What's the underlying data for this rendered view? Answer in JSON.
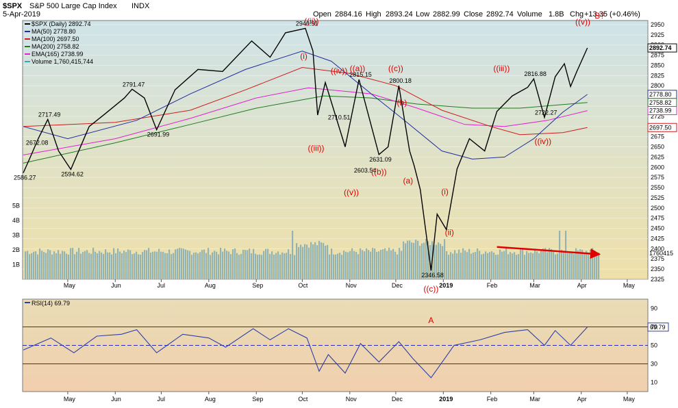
{
  "header": {
    "title": "$SPX",
    "subtitle": "S&P 500 Large Cap Index",
    "exchange": "INDX",
    "date": "5-Apr-2019",
    "open_label": "Open",
    "open": "2884.16",
    "high_label": "High",
    "high": "2893.24",
    "low_label": "Low",
    "low": "2882.99",
    "close_label": "Close",
    "close": "2892.74",
    "volume_label": "Volume",
    "volume": "1.8B",
    "chg_label": "Chg",
    "chg": "+13.35 (+0.46%)"
  },
  "legend": [
    {
      "label": "$SPX (Daily) 2892.74",
      "color": "#000000"
    },
    {
      "label": "MA(50) 2778.80",
      "color": "#1f2d9e"
    },
    {
      "label": "MA(100) 2697.50",
      "color": "#d11a1a"
    },
    {
      "label": "MA(200) 2758.82",
      "color": "#1e7a1e"
    },
    {
      "label": "EMA(165) 2738.99",
      "color": "#e020d0"
    },
    {
      "label": "Volume 1,760,415,744",
      "color": "#3aa3b5"
    }
  ],
  "colors": {
    "price_bg_top": "#cfe3e8",
    "price_bg_bottom": "#efe0a8",
    "rsi_bg_top": "#e9dcb6",
    "rsi_bg_bottom": "#f1cfae",
    "volume_bar": "#93b3b3",
    "annotation": "#e00000"
  },
  "chart_data": [
    {
      "type": "line",
      "name": "price",
      "x_axis": [
        "May",
        "Jun",
        "Jul",
        "Aug",
        "Sep",
        "Oct",
        "Nov",
        "Dec",
        "2019",
        "Feb",
        "Mar",
        "Apr",
        "May"
      ],
      "ylim": [
        2325,
        2960
      ],
      "y_ticks": [
        2950,
        2925,
        2900,
        2875,
        2850,
        2825,
        2800,
        2775,
        2750,
        2725,
        2700,
        2675,
        2650,
        2625,
        2600,
        2575,
        2550,
        2525,
        2500,
        2475,
        2450,
        2425,
        2400,
        2375,
        2350,
        2325
      ],
      "volume_ticks": [
        "5B",
        "4B",
        "3B",
        "2B",
        "1B"
      ],
      "volume_ticks_values": [
        5,
        4,
        3,
        2,
        1
      ],
      "price_path": [
        [
          "2018-04-02",
          2586.27
        ],
        [
          "2018-04-06",
          2620
        ],
        [
          "2018-04-12",
          2672.08
        ],
        [
          "2018-04-18",
          2717.49
        ],
        [
          "2018-04-25",
          2640
        ],
        [
          "2018-05-03",
          2594.62
        ],
        [
          "2018-05-15",
          2700
        ],
        [
          "2018-05-25",
          2730
        ],
        [
          "2018-06-07",
          2770
        ],
        [
          "2018-06-12",
          2791.47
        ],
        [
          "2018-06-20",
          2770
        ],
        [
          "2018-06-28",
          2691.99
        ],
        [
          "2018-07-10",
          2790
        ],
        [
          "2018-07-25",
          2840
        ],
        [
          "2018-08-10",
          2835
        ],
        [
          "2018-08-29",
          2910
        ],
        [
          "2018-09-10",
          2870
        ],
        [
          "2018-09-20",
          2930
        ],
        [
          "2018-10-03",
          2940.91
        ],
        [
          "2018-10-08",
          2885
        ],
        [
          "2018-10-11",
          2728
        ],
        [
          "2018-10-16",
          2808
        ],
        [
          "2018-10-24",
          2710.51
        ],
        [
          "2018-10-29",
          2650
        ],
        [
          "2018-11-07",
          2815.15
        ],
        [
          "2018-11-20",
          2631.09
        ],
        [
          "2018-11-26",
          2650
        ],
        [
          "2018-12-03",
          2800.18
        ],
        [
          "2018-12-10",
          2640
        ],
        [
          "2018-12-13",
          2603.54
        ],
        [
          "2018-12-17",
          2545
        ],
        [
          "2018-12-24",
          2346.58
        ],
        [
          "2018-12-28",
          2485
        ],
        [
          "2019-01-03",
          2447
        ],
        [
          "2019-01-10",
          2596
        ],
        [
          "2019-01-18",
          2670
        ],
        [
          "2019-01-28",
          2640
        ],
        [
          "2019-02-05",
          2737
        ],
        [
          "2019-02-15",
          2775
        ],
        [
          "2019-02-25",
          2796
        ],
        [
          "2019-03-01",
          2816.88
        ],
        [
          "2019-03-08",
          2722.27
        ],
        [
          "2019-03-15",
          2822
        ],
        [
          "2019-03-21",
          2854
        ],
        [
          "2019-03-25",
          2798
        ],
        [
          "2019-03-29",
          2834
        ],
        [
          "2019-04-05",
          2892.74
        ]
      ],
      "ma50": [
        [
          "2018-04-02",
          2700
        ],
        [
          "2018-05-01",
          2670
        ],
        [
          "2018-06-15",
          2715
        ],
        [
          "2018-07-20",
          2780
        ],
        [
          "2018-08-25",
          2840
        ],
        [
          "2018-10-01",
          2885
        ],
        [
          "2018-10-20",
          2860
        ],
        [
          "2018-11-15",
          2780
        ],
        [
          "2018-12-05",
          2720
        ],
        [
          "2018-12-31",
          2640
        ],
        [
          "2019-01-20",
          2620
        ],
        [
          "2019-02-10",
          2625
        ],
        [
          "2019-03-01",
          2670
        ],
        [
          "2019-03-20",
          2735
        ],
        [
          "2019-04-05",
          2778.8
        ]
      ],
      "ma100": [
        [
          "2018-04-02",
          2700
        ],
        [
          "2018-06-01",
          2710
        ],
        [
          "2018-07-20",
          2740
        ],
        [
          "2018-08-25",
          2790
        ],
        [
          "2018-10-01",
          2845
        ],
        [
          "2018-11-01",
          2830
        ],
        [
          "2018-12-01",
          2800
        ],
        [
          "2018-12-31",
          2740
        ],
        [
          "2019-02-01",
          2700
        ],
        [
          "2019-02-20",
          2680
        ],
        [
          "2019-03-20",
          2685
        ],
        [
          "2019-04-05",
          2697.5
        ]
      ],
      "ma200": [
        [
          "2018-04-02",
          2610
        ],
        [
          "2018-06-01",
          2660
        ],
        [
          "2018-07-20",
          2705
        ],
        [
          "2018-09-01",
          2745
        ],
        [
          "2018-10-15",
          2775
        ],
        [
          "2018-11-15",
          2770
        ],
        [
          "2018-12-15",
          2755
        ],
        [
          "2019-01-20",
          2745
        ],
        [
          "2019-02-20",
          2745
        ],
        [
          "2019-04-05",
          2758.82
        ]
      ],
      "ema165": [
        [
          "2018-04-02",
          2630
        ],
        [
          "2018-06-01",
          2670
        ],
        [
          "2018-07-20",
          2720
        ],
        [
          "2018-09-01",
          2770
        ],
        [
          "2018-10-05",
          2795
        ],
        [
          "2018-11-15",
          2780
        ],
        [
          "2018-12-15",
          2745
        ],
        [
          "2019-01-15",
          2705
        ],
        [
          "2019-02-10",
          2700
        ],
        [
          "2019-03-10",
          2715
        ],
        [
          "2019-04-05",
          2738.99
        ]
      ],
      "price_labels": [
        {
          "x": "2018-04-02",
          "y": 2586.27,
          "text": "2586.27"
        },
        {
          "x": "2018-04-10",
          "y": 2672.08,
          "text": "2672.08"
        },
        {
          "x": "2018-04-18",
          "y": 2717.49,
          "text": "2717.49"
        },
        {
          "x": "2018-05-03",
          "y": 2594.62,
          "text": "2594.62"
        },
        {
          "x": "2018-06-12",
          "y": 2791.47,
          "text": "2791.47"
        },
        {
          "x": "2018-06-28",
          "y": 2691.99,
          "text": "2691.99"
        },
        {
          "x": "2018-10-03",
          "y": 2940.91,
          "text": "2940.91"
        },
        {
          "x": "2018-10-24",
          "y": 2710.51,
          "text": "2710.51"
        },
        {
          "x": "2018-11-07",
          "y": 2815.15,
          "text": "2815.15"
        },
        {
          "x": "2018-11-20",
          "y": 2631.09,
          "text": "2631.09"
        },
        {
          "x": "2018-11-10",
          "y": 2603.54,
          "text": "2603.54"
        },
        {
          "x": "2018-12-03",
          "y": 2800.18,
          "text": "2800.18"
        },
        {
          "x": "2018-12-24",
          "y": 2346.58,
          "text": "2346.58"
        },
        {
          "x": "2019-03-01",
          "y": 2816.88,
          "text": "2816.88"
        },
        {
          "x": "2019-03-08",
          "y": 2722.27,
          "text": "2722.27"
        }
      ],
      "wave_labels": [
        {
          "text": "((ii))",
          "x": "2018-10-07",
          "y": 2952
        },
        {
          "text": "(i)",
          "x": "2018-10-02",
          "y": 2866
        },
        {
          "text": "((iii))",
          "x": "2018-10-10",
          "y": 2640
        },
        {
          "text": "((iv))",
          "x": "2018-10-25",
          "y": 2830
        },
        {
          "text": "((a))",
          "x": "2018-11-06",
          "y": 2836
        },
        {
          "text": "((c))",
          "x": "2018-12-01",
          "y": 2836
        },
        {
          "text": "((v))",
          "x": "2018-11-02",
          "y": 2532
        },
        {
          "text": "((b))",
          "x": "2018-11-20",
          "y": 2582
        },
        {
          "text": "(b)",
          "x": "2018-12-05",
          "y": 2752
        },
        {
          "text": "(a)",
          "x": "2018-12-09",
          "y": 2560
        },
        {
          "text": "(i)",
          "x": "2019-01-02",
          "y": 2533
        },
        {
          "text": "(ii)",
          "x": "2019-01-05",
          "y": 2433
        },
        {
          "text": "((iii))",
          "x": "2019-02-08",
          "y": 2836
        },
        {
          "text": "((iv))",
          "x": "2019-03-07",
          "y": 2657
        },
        {
          "text": "((v))",
          "x": "2019-04-02",
          "y": 2950
        },
        {
          "text": "B?",
          "x": "2019-04-13",
          "y": 2965
        }
      ],
      "volume_arrow": {
        "from": [
          "2019-02-05",
          2.2
        ],
        "to": [
          "2019-04-13",
          1.7
        ]
      },
      "volume_bars": []
    },
    {
      "type": "line",
      "name": "rsi",
      "legend_label": "RSI(14) 69.79",
      "y_ticks": [
        90,
        70,
        50,
        30,
        10
      ],
      "ylim": [
        0,
        100
      ],
      "overbought": 70,
      "oversold": 30,
      "last_value": "69.79",
      "series": [
        [
          "2018-04-02",
          45
        ],
        [
          "2018-04-20",
          58
        ],
        [
          "2018-05-05",
          42
        ],
        [
          "2018-05-20",
          60
        ],
        [
          "2018-06-05",
          62
        ],
        [
          "2018-06-15",
          67
        ],
        [
          "2018-06-28",
          42
        ],
        [
          "2018-07-15",
          62
        ],
        [
          "2018-08-01",
          58
        ],
        [
          "2018-08-12",
          48
        ],
        [
          "2018-08-30",
          68
        ],
        [
          "2018-09-10",
          56
        ],
        [
          "2018-09-22",
          68
        ],
        [
          "2018-10-04",
          58
        ],
        [
          "2018-10-12",
          22
        ],
        [
          "2018-10-18",
          40
        ],
        [
          "2018-10-29",
          20
        ],
        [
          "2018-11-08",
          52
        ],
        [
          "2018-11-20",
          32
        ],
        [
          "2018-12-03",
          54
        ],
        [
          "2018-12-12",
          36
        ],
        [
          "2018-12-24",
          15
        ],
        [
          "2019-01-08",
          50
        ],
        [
          "2019-01-25",
          56
        ],
        [
          "2019-02-10",
          64
        ],
        [
          "2019-02-25",
          67
        ],
        [
          "2019-03-08",
          50
        ],
        [
          "2019-03-15",
          66
        ],
        [
          "2019-03-25",
          50
        ],
        [
          "2019-04-05",
          69.79
        ]
      ],
      "wave_labels": [
        {
          "text": "((c))",
          "x": "2018-12-24",
          "y": 110
        },
        {
          "text": "A",
          "x": "2018-12-24",
          "y": 90
        }
      ]
    }
  ]
}
